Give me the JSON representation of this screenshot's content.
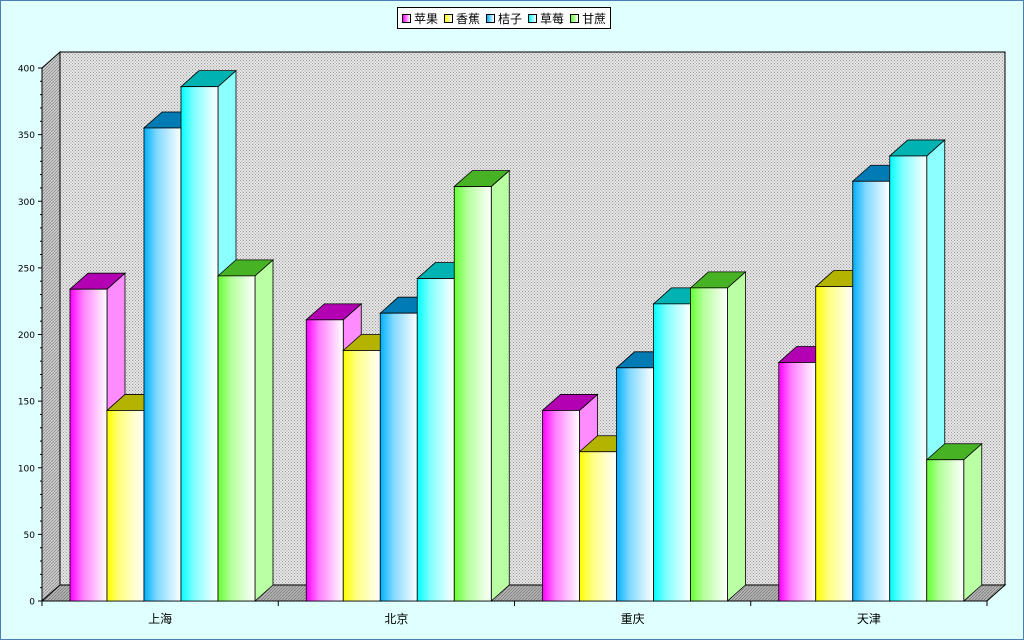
{
  "chart_data": {
    "type": "bar",
    "title": "",
    "xlabel": "",
    "ylabel": "",
    "categories": [
      "上海",
      "北京",
      "重庆",
      "天津"
    ],
    "series": [
      {
        "name": "苹果",
        "color": "#ff00ff",
        "values": [
          234,
          211,
          143,
          179
        ]
      },
      {
        "name": "香蕉",
        "color": "#ffff00",
        "values": [
          143,
          188,
          112,
          236
        ]
      },
      {
        "name": "桔子",
        "color": "#00b0ff",
        "values": [
          355,
          216,
          175,
          315
        ]
      },
      {
        "name": "草莓",
        "color": "#00ffff",
        "values": [
          386,
          242,
          223,
          334
        ]
      },
      {
        "name": "甘蔗",
        "color": "#66ff33",
        "values": [
          244,
          311,
          235,
          106
        ]
      }
    ],
    "ylim": [
      0,
      400
    ],
    "yticks": [
      0,
      50,
      100,
      150,
      200,
      250,
      300,
      350,
      400
    ],
    "legend_position": "top-center",
    "style": "3d",
    "background_color": "#e0ffff",
    "plot_pattern": "dotted-grey"
  }
}
